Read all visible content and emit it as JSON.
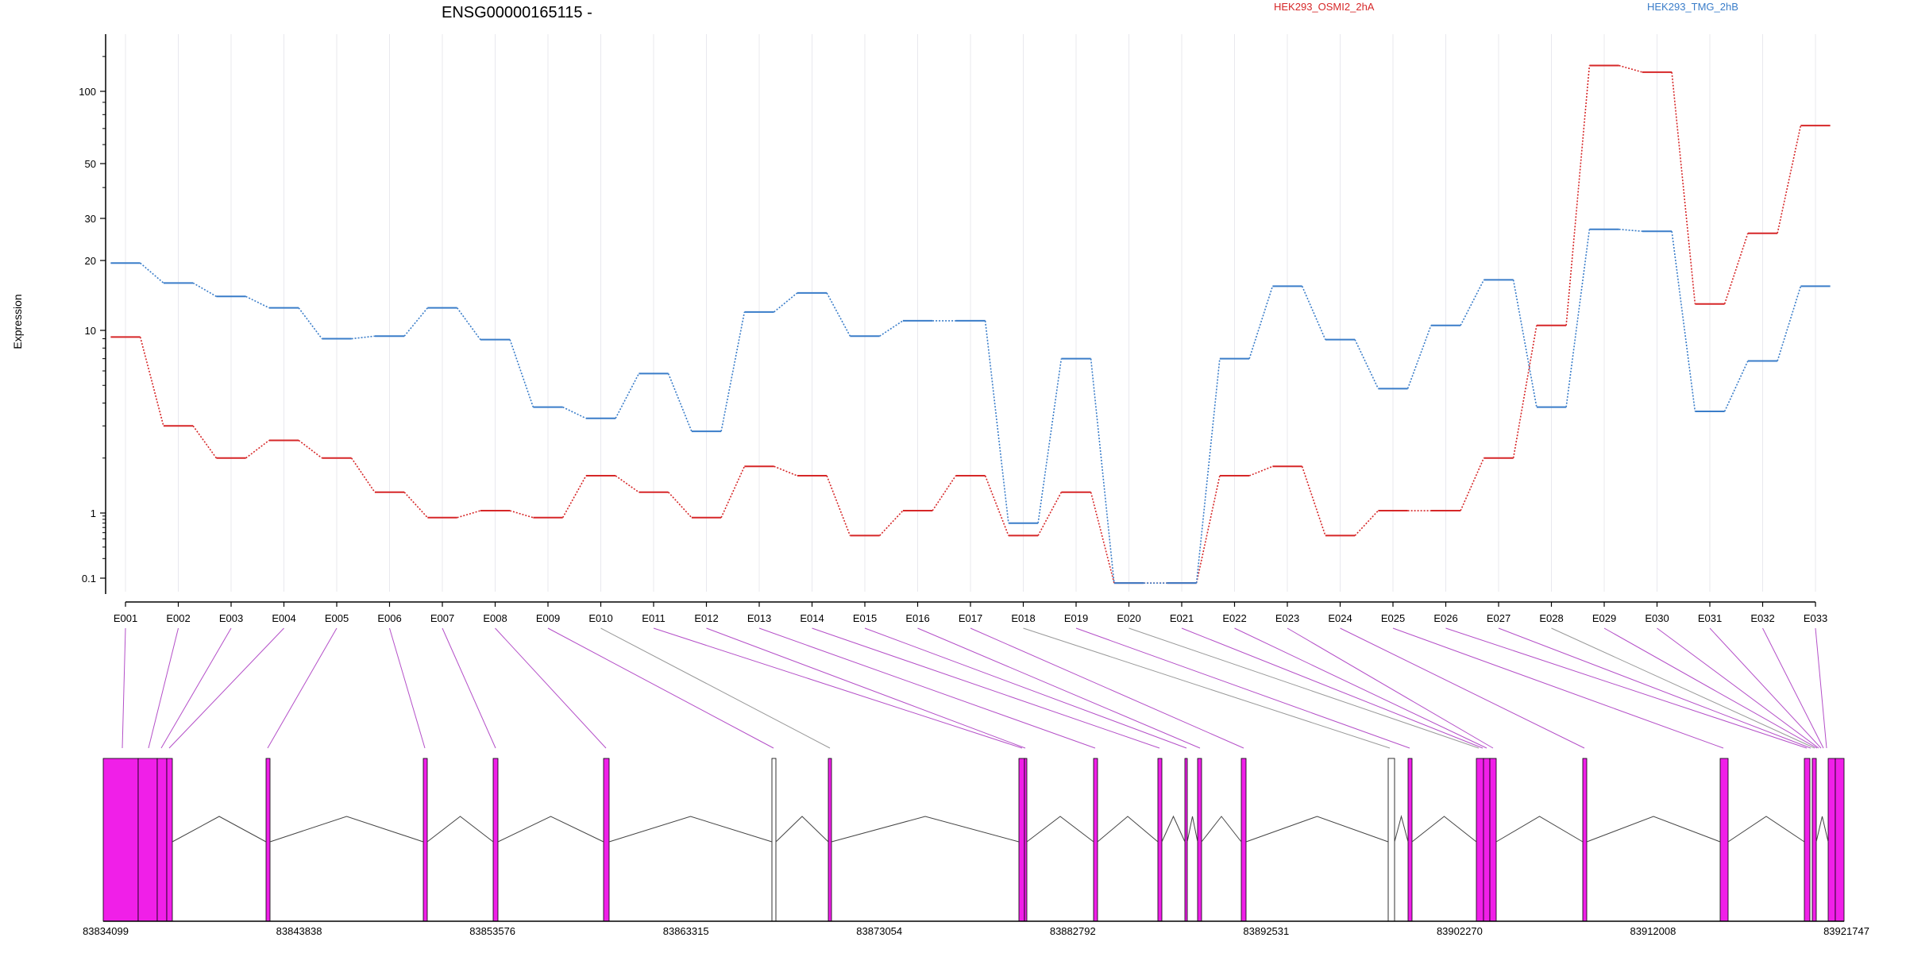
{
  "chart_data": {
    "type": "line",
    "title": "ENSG00000165115 -",
    "ylabel": "Expression",
    "xlabel": "",
    "yscale": "log",
    "yticks": [
      0.1,
      1,
      10,
      20,
      30,
      50,
      100
    ],
    "ylim": [
      0.08,
      200
    ],
    "grid": "vertical-lines",
    "legend_position": "top",
    "categories": [
      "E001",
      "E002",
      "E003",
      "E004",
      "E005",
      "E006",
      "E007",
      "E008",
      "E009",
      "E010",
      "E011",
      "E012",
      "E013",
      "E014",
      "E015",
      "E016",
      "E017",
      "E018",
      "E019",
      "E020",
      "E021",
      "E022",
      "E023",
      "E024",
      "E025",
      "E026",
      "E027",
      "E028",
      "E029",
      "E030",
      "E031",
      "E032",
      "E033"
    ],
    "series": [
      {
        "name": "HEK293_OSMI2_2hA",
        "color": "#d62728",
        "values": [
          9.2,
          3.0,
          2.0,
          2.5,
          2.0,
          1.3,
          0.85,
          1.03,
          0.85,
          1.6,
          1.3,
          0.85,
          1.8,
          1.6,
          0.45,
          1.03,
          1.6,
          0.45,
          1.3,
          0.09,
          0.09,
          1.6,
          1.8,
          0.45,
          1.03,
          1.03,
          2.0,
          10.5,
          135,
          125,
          13,
          26,
          72
        ]
      },
      {
        "name": "HEK293_TMG_2hB",
        "color": "#3a7dc9",
        "values": [
          19.5,
          16,
          14,
          12.5,
          9,
          9.3,
          12.5,
          8.9,
          3.8,
          3.3,
          5.8,
          2.8,
          12,
          14.5,
          9.3,
          11,
          11,
          0.7,
          7,
          0.09,
          0.09,
          7,
          15.5,
          8.9,
          4.8,
          10.5,
          16.5,
          3.8,
          27,
          26.5,
          3.6,
          6.8,
          15.5
        ]
      }
    ],
    "gene_model": {
      "coordinate_labels": [
        "83834099",
        "83843838",
        "83853576",
        "83863315",
        "83873054",
        "83882792",
        "83892531",
        "83902270",
        "83912008",
        "83921747"
      ],
      "exon_color": "#f01fe8"
    }
  }
}
